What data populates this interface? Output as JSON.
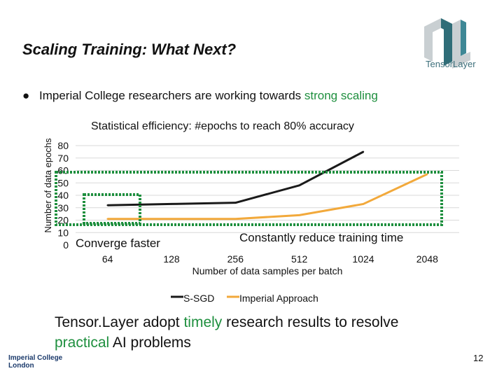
{
  "slide": {
    "title": "Scaling Training: What Next?",
    "logo_text": "TensorLayer",
    "bullet_prefix": "Imperial College researchers are working towards ",
    "bullet_highlight": "strong scaling",
    "footer_line_1a": "Tensor.Layer adopt ",
    "footer_timely": "timely",
    "footer_line_1b": " research results to resolve",
    "footer_practical": "practical",
    "footer_line_2": " AI problems",
    "institution": [
      "Imperial College",
      "London"
    ],
    "page_number": "12",
    "accent_color": "#1e8f3e"
  },
  "chart_data": {
    "type": "line",
    "title": "Statistical efficiency: #epochs to reach 80% accuracy",
    "xlabel": "Number of data samples per batch",
    "ylabel": "Number of data epochs",
    "categories": [
      "64",
      "128",
      "256",
      "512",
      "1024",
      "2048"
    ],
    "yticks": [
      0,
      10,
      20,
      30,
      40,
      50,
      60,
      70,
      80
    ],
    "ylim": [
      0,
      80
    ],
    "grid": true,
    "legend_position": "bottom",
    "series": [
      {
        "name": "S-SGD",
        "color": "#1a1a1a",
        "values": [
          32,
          33,
          34,
          48,
          75,
          null
        ]
      },
      {
        "name": "Imperial Approach",
        "color": "#f2a93b",
        "values": [
          21,
          21,
          21,
          24,
          33,
          57
        ]
      }
    ],
    "annotations": {
      "converge": "Converge faster",
      "constant": "Constantly reduce training time"
    }
  }
}
